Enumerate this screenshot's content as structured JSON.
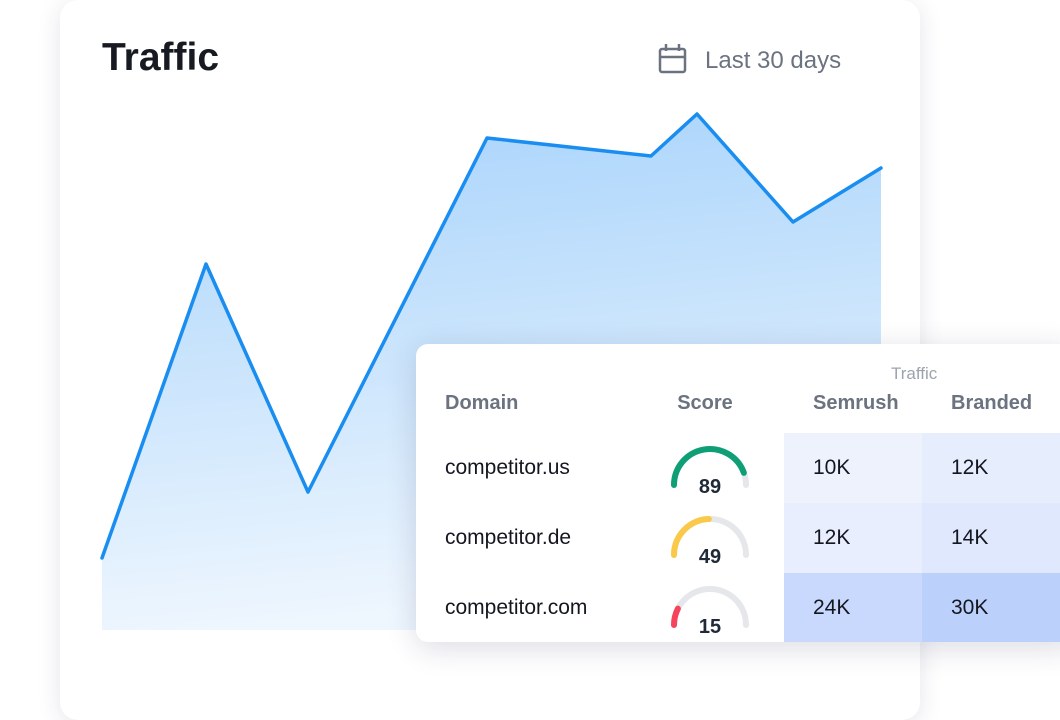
{
  "header": {
    "title": "Traffic",
    "date_range": "Last 30 days"
  },
  "traffic_chart": {
    "type": "line",
    "values": [
      12,
      61,
      23,
      82,
      79,
      86,
      68,
      77
    ],
    "color": "#1a8ef0"
  },
  "table": {
    "group_header": "Traffic",
    "columns": [
      "Domain",
      "Score",
      "Semrush",
      "Branded"
    ],
    "rows": [
      {
        "domain": "competitor.us",
        "score": 89,
        "score_color": "#0e9f77",
        "semrush": "10K",
        "branded": "12K"
      },
      {
        "domain": "competitor.de",
        "score": 49,
        "score_color": "#fbc94a",
        "semrush": "12K",
        "branded": "14K"
      },
      {
        "domain": "competitor.com",
        "score": 15,
        "score_color": "#f5455c",
        "semrush": "24K",
        "branded": "30K"
      }
    ]
  }
}
